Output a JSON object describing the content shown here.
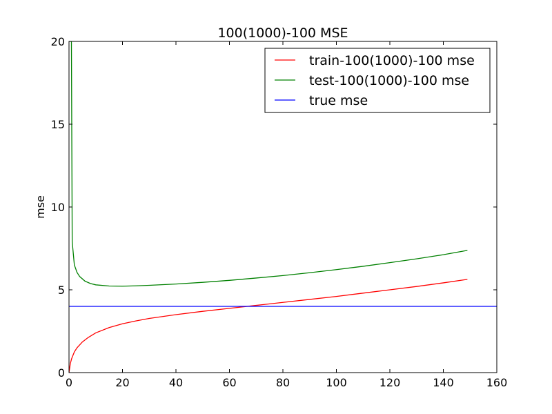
{
  "chart_data": {
    "type": "line",
    "title": "100(1000)-100 MSE",
    "xlabel": "",
    "ylabel": "mse",
    "xlim": [
      0,
      160
    ],
    "ylim": [
      0,
      20
    ],
    "xticks": [
      "0",
      "20",
      "40",
      "60",
      "80",
      "100",
      "120",
      "140",
      "160"
    ],
    "yticks": [
      "0",
      "5",
      "10",
      "15",
      "20"
    ],
    "grid": false,
    "legend_position": "top-right",
    "series": [
      {
        "name": "train-100(1000)-100 mse",
        "color": "#ff0000",
        "x": [
          0,
          0.5,
          1,
          2,
          3,
          5,
          7,
          10,
          15,
          20,
          25,
          30,
          40,
          50,
          60,
          70,
          80,
          90,
          100,
          110,
          120,
          130,
          140,
          149
        ],
        "y": [
          0,
          0.55,
          0.85,
          1.25,
          1.5,
          1.85,
          2.1,
          2.4,
          2.72,
          2.95,
          3.12,
          3.27,
          3.5,
          3.7,
          3.88,
          4.06,
          4.24,
          4.42,
          4.6,
          4.8,
          5.0,
          5.2,
          5.42,
          5.63
        ]
      },
      {
        "name": "test-100(1000)-100 mse",
        "color": "#008000",
        "x": [
          0,
          0.3,
          0.6,
          0.9,
          1.2,
          2,
          3,
          4,
          6,
          8,
          10,
          15,
          20,
          25,
          30,
          40,
          50,
          60,
          70,
          80,
          90,
          100,
          110,
          120,
          130,
          140,
          149
        ],
        "y": [
          20,
          20,
          20,
          20,
          7.9,
          6.5,
          6.05,
          5.8,
          5.52,
          5.38,
          5.3,
          5.23,
          5.22,
          5.24,
          5.27,
          5.35,
          5.45,
          5.57,
          5.71,
          5.86,
          6.03,
          6.22,
          6.42,
          6.64,
          6.87,
          7.12,
          7.38
        ]
      },
      {
        "name": "true mse",
        "color": "#0000ff",
        "x": [
          0,
          160
        ],
        "y": [
          4,
          4
        ]
      }
    ]
  }
}
